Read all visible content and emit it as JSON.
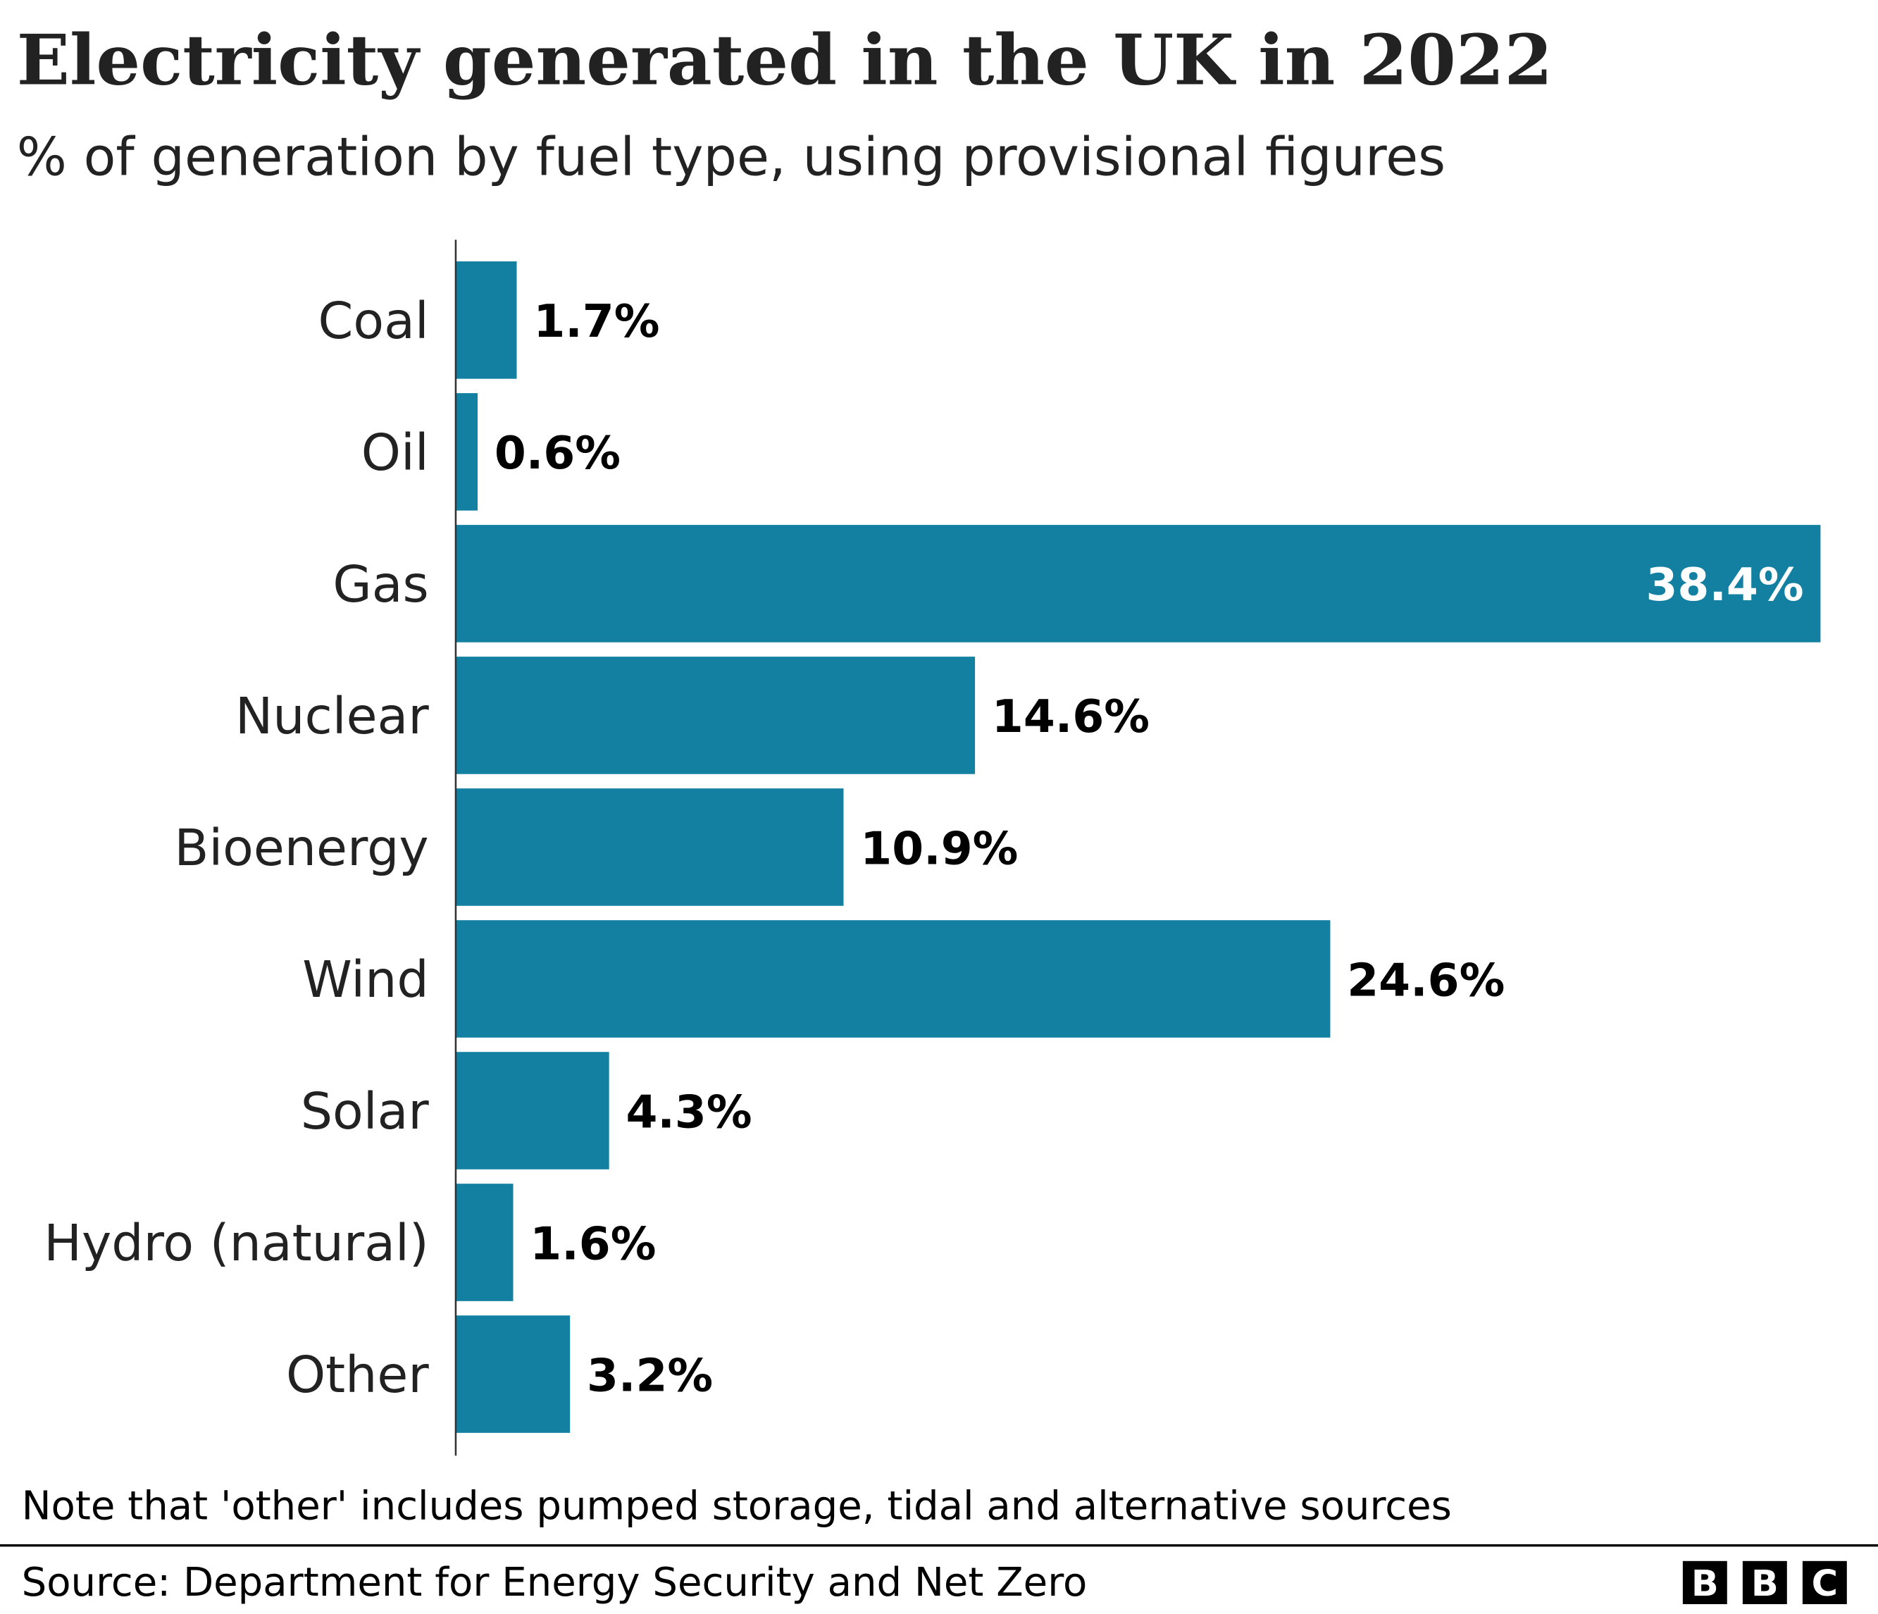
{
  "chart_data": {
    "type": "bar",
    "orientation": "horizontal",
    "title": "Electricity generated in the UK in 2022",
    "subtitle": "% of generation by fuel type, using provisional figures",
    "categories": [
      "Coal",
      "Oil",
      "Gas",
      "Nuclear",
      "Bioenergy",
      "Wind",
      "Solar",
      "Hydro (natural)",
      "Other"
    ],
    "values": [
      1.7,
      0.6,
      38.4,
      14.6,
      10.9,
      24.6,
      4.3,
      1.6,
      3.2
    ],
    "data_labels": [
      "1.7%",
      "0.6%",
      "38.4%",
      "14.6%",
      "10.9%",
      "24.6%",
      "4.3%",
      "1.6%",
      "3.2%"
    ],
    "xlim": [
      0,
      38.4
    ],
    "grid": false,
    "bar_color": "#1380A1",
    "note": "Note that 'other' includes pumped storage, tidal and alternative sources",
    "source": "Source: Department for Energy Security and Net Zero"
  },
  "logo": {
    "letters": [
      "B",
      "B",
      "C"
    ]
  }
}
